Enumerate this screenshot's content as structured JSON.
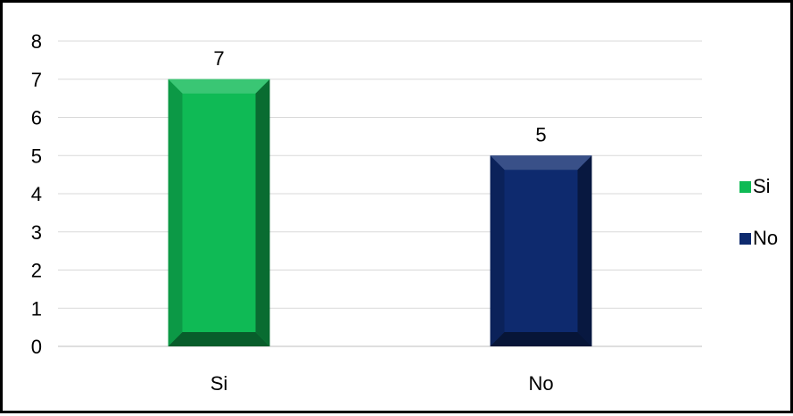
{
  "chart_data": {
    "type": "bar",
    "categories": [
      "Si",
      "No"
    ],
    "values": [
      7,
      5
    ],
    "colors": [
      "#0fba55",
      "#0e2a6e"
    ],
    "data_labels": [
      "7",
      "5"
    ],
    "title": "",
    "xlabel": "",
    "ylabel": "",
    "ylim": [
      0,
      8
    ],
    "yticks": [
      "0",
      "1",
      "2",
      "3",
      "4",
      "5",
      "6",
      "7",
      "8"
    ],
    "grid": true,
    "legend": {
      "placement": "right",
      "entries": [
        "Si",
        "No"
      ]
    }
  }
}
